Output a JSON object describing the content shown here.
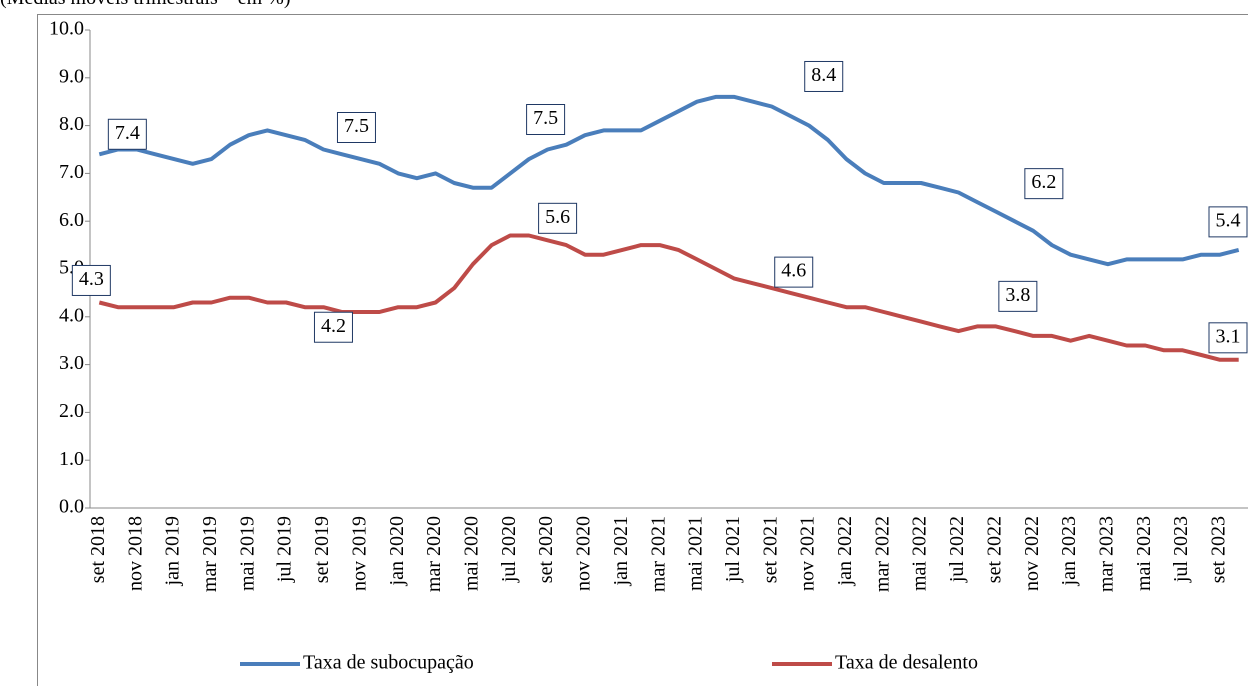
{
  "chart_data": {
    "type": "line",
    "subtitle": "(Médias móveis trimestrais – em %)",
    "categories": [
      "set 2018",
      null,
      "nov 2018",
      null,
      "jan 2019",
      null,
      "mar 2019",
      null,
      "mai 2019",
      null,
      "jul 2019",
      null,
      "set 2019",
      null,
      "nov 2019",
      null,
      "jan 2020",
      null,
      "mar 2020",
      null,
      "mai 2020",
      null,
      "jul 2020",
      null,
      "set 2020",
      null,
      "nov 2020",
      null,
      "jan 2021",
      null,
      "mar 2021",
      null,
      "mai 2021",
      null,
      "jul 2021",
      null,
      "set 2021",
      null,
      "nov 2021",
      null,
      "jan 2022",
      null,
      "mar 2022",
      null,
      "mai 2022",
      null,
      "jul 2022",
      null,
      "set 2022",
      null,
      "nov 2022",
      null,
      "jan 2023",
      null,
      "mar 2023",
      null,
      "mai 2023",
      null,
      "jul 2023",
      null,
      "set 2023",
      null
    ],
    "series": [
      {
        "name": "Taxa de subocupação",
        "color": "#4a7ebb",
        "values": [
          7.4,
          7.5,
          7.5,
          7.4,
          7.3,
          7.2,
          7.3,
          7.6,
          7.8,
          7.9,
          7.8,
          7.7,
          7.5,
          7.4,
          7.3,
          7.2,
          7.0,
          6.9,
          7.0,
          6.8,
          6.7,
          6.7,
          7.0,
          7.3,
          7.5,
          7.6,
          7.8,
          7.9,
          7.9,
          7.9,
          8.1,
          8.3,
          8.5,
          8.6,
          8.6,
          8.5,
          8.4,
          8.2,
          8.0,
          7.7,
          7.3,
          7.0,
          6.8,
          6.8,
          6.8,
          6.7,
          6.6,
          6.4,
          6.2,
          6.0,
          5.8,
          5.5,
          5.3,
          5.2,
          5.1,
          5.2,
          5.2,
          5.2,
          5.2,
          5.3,
          5.3,
          5.4
        ],
        "value_labels": [
          "7.4",
          null,
          null,
          null,
          null,
          null,
          null,
          null,
          null,
          null,
          null,
          null,
          "7.5",
          null,
          null,
          null,
          null,
          null,
          null,
          null,
          null,
          null,
          null,
          null,
          "7.5",
          null,
          null,
          null,
          null,
          null,
          null,
          null,
          null,
          null,
          null,
          null,
          "8.4",
          null,
          null,
          null,
          null,
          null,
          null,
          null,
          null,
          null,
          null,
          null,
          "6.2",
          null,
          null,
          null,
          null,
          null,
          null,
          null,
          null,
          null,
          null,
          null,
          null,
          "5.4"
        ]
      },
      {
        "name": "Taxa de desalento",
        "color": "#be4b48",
        "values": [
          4.3,
          4.2,
          4.2,
          4.2,
          4.2,
          4.3,
          4.3,
          4.4,
          4.4,
          4.3,
          4.3,
          4.2,
          4.2,
          4.1,
          4.1,
          4.1,
          4.2,
          4.2,
          4.3,
          4.6,
          5.1,
          5.5,
          5.7,
          5.7,
          5.6,
          5.5,
          5.3,
          5.3,
          5.4,
          5.5,
          5.5,
          5.4,
          5.2,
          5.0,
          4.8,
          4.7,
          4.6,
          4.5,
          4.4,
          4.3,
          4.2,
          4.2,
          4.1,
          4.0,
          3.9,
          3.8,
          3.7,
          3.8,
          3.8,
          3.7,
          3.6,
          3.6,
          3.5,
          3.6,
          3.5,
          3.4,
          3.4,
          3.3,
          3.3,
          3.2,
          3.1,
          3.1
        ],
        "value_labels": [
          "4.3",
          null,
          null,
          null,
          null,
          null,
          null,
          null,
          null,
          null,
          null,
          null,
          "4.2",
          null,
          null,
          null,
          null,
          null,
          null,
          null,
          null,
          null,
          null,
          null,
          "5.6",
          null,
          null,
          null,
          null,
          null,
          null,
          null,
          null,
          null,
          null,
          null,
          "4.6",
          null,
          null,
          null,
          null,
          null,
          null,
          null,
          null,
          null,
          null,
          null,
          "3.8",
          null,
          null,
          null,
          null,
          null,
          null,
          null,
          null,
          null,
          null,
          null,
          null,
          "3.1"
        ]
      }
    ],
    "ylim": [
      0,
      10
    ],
    "yticks": [
      {
        "value": 0,
        "label": "0.0"
      },
      {
        "value": 1,
        "label": "1.0"
      },
      {
        "value": 2,
        "label": "2.0"
      },
      {
        "value": 3,
        "label": "3.0"
      },
      {
        "value": 4,
        "label": "4.0"
      },
      {
        "value": 5,
        "label": "5.0"
      },
      {
        "value": 6,
        "label": "6.0"
      },
      {
        "value": 7,
        "label": "7.0"
      },
      {
        "value": 8,
        "label": "8.0"
      },
      {
        "value": 9,
        "label": "9.0"
      },
      {
        "value": 10,
        "label": "10.0"
      }
    ],
    "legend": "bottom"
  }
}
